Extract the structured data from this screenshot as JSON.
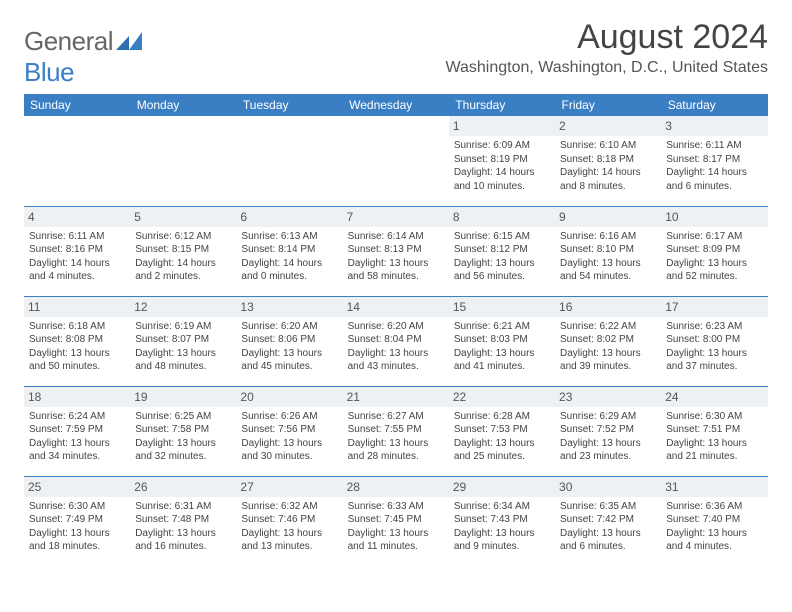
{
  "logo": {
    "general": "General",
    "blue": "Blue"
  },
  "header": {
    "title": "August 2024",
    "location": "Washington, Washington, D.C., United States"
  },
  "colors": {
    "header_bg": "#3a7fc4",
    "header_text": "#ffffff",
    "daynum_bg": "#eef1f3",
    "border": "#3a7fc4",
    "text": "#444444"
  },
  "weekdays": [
    "Sunday",
    "Monday",
    "Tuesday",
    "Wednesday",
    "Thursday",
    "Friday",
    "Saturday"
  ],
  "weeks": [
    [
      null,
      null,
      null,
      null,
      {
        "n": "1",
        "sr": "Sunrise: 6:09 AM",
        "ss": "Sunset: 8:19 PM",
        "dl1": "Daylight: 14 hours",
        "dl2": "and 10 minutes."
      },
      {
        "n": "2",
        "sr": "Sunrise: 6:10 AM",
        "ss": "Sunset: 8:18 PM",
        "dl1": "Daylight: 14 hours",
        "dl2": "and 8 minutes."
      },
      {
        "n": "3",
        "sr": "Sunrise: 6:11 AM",
        "ss": "Sunset: 8:17 PM",
        "dl1": "Daylight: 14 hours",
        "dl2": "and 6 minutes."
      }
    ],
    [
      {
        "n": "4",
        "sr": "Sunrise: 6:11 AM",
        "ss": "Sunset: 8:16 PM",
        "dl1": "Daylight: 14 hours",
        "dl2": "and 4 minutes."
      },
      {
        "n": "5",
        "sr": "Sunrise: 6:12 AM",
        "ss": "Sunset: 8:15 PM",
        "dl1": "Daylight: 14 hours",
        "dl2": "and 2 minutes."
      },
      {
        "n": "6",
        "sr": "Sunrise: 6:13 AM",
        "ss": "Sunset: 8:14 PM",
        "dl1": "Daylight: 14 hours",
        "dl2": "and 0 minutes."
      },
      {
        "n": "7",
        "sr": "Sunrise: 6:14 AM",
        "ss": "Sunset: 8:13 PM",
        "dl1": "Daylight: 13 hours",
        "dl2": "and 58 minutes."
      },
      {
        "n": "8",
        "sr": "Sunrise: 6:15 AM",
        "ss": "Sunset: 8:12 PM",
        "dl1": "Daylight: 13 hours",
        "dl2": "and 56 minutes."
      },
      {
        "n": "9",
        "sr": "Sunrise: 6:16 AM",
        "ss": "Sunset: 8:10 PM",
        "dl1": "Daylight: 13 hours",
        "dl2": "and 54 minutes."
      },
      {
        "n": "10",
        "sr": "Sunrise: 6:17 AM",
        "ss": "Sunset: 8:09 PM",
        "dl1": "Daylight: 13 hours",
        "dl2": "and 52 minutes."
      }
    ],
    [
      {
        "n": "11",
        "sr": "Sunrise: 6:18 AM",
        "ss": "Sunset: 8:08 PM",
        "dl1": "Daylight: 13 hours",
        "dl2": "and 50 minutes."
      },
      {
        "n": "12",
        "sr": "Sunrise: 6:19 AM",
        "ss": "Sunset: 8:07 PM",
        "dl1": "Daylight: 13 hours",
        "dl2": "and 48 minutes."
      },
      {
        "n": "13",
        "sr": "Sunrise: 6:20 AM",
        "ss": "Sunset: 8:06 PM",
        "dl1": "Daylight: 13 hours",
        "dl2": "and 45 minutes."
      },
      {
        "n": "14",
        "sr": "Sunrise: 6:20 AM",
        "ss": "Sunset: 8:04 PM",
        "dl1": "Daylight: 13 hours",
        "dl2": "and 43 minutes."
      },
      {
        "n": "15",
        "sr": "Sunrise: 6:21 AM",
        "ss": "Sunset: 8:03 PM",
        "dl1": "Daylight: 13 hours",
        "dl2": "and 41 minutes."
      },
      {
        "n": "16",
        "sr": "Sunrise: 6:22 AM",
        "ss": "Sunset: 8:02 PM",
        "dl1": "Daylight: 13 hours",
        "dl2": "and 39 minutes."
      },
      {
        "n": "17",
        "sr": "Sunrise: 6:23 AM",
        "ss": "Sunset: 8:00 PM",
        "dl1": "Daylight: 13 hours",
        "dl2": "and 37 minutes."
      }
    ],
    [
      {
        "n": "18",
        "sr": "Sunrise: 6:24 AM",
        "ss": "Sunset: 7:59 PM",
        "dl1": "Daylight: 13 hours",
        "dl2": "and 34 minutes."
      },
      {
        "n": "19",
        "sr": "Sunrise: 6:25 AM",
        "ss": "Sunset: 7:58 PM",
        "dl1": "Daylight: 13 hours",
        "dl2": "and 32 minutes."
      },
      {
        "n": "20",
        "sr": "Sunrise: 6:26 AM",
        "ss": "Sunset: 7:56 PM",
        "dl1": "Daylight: 13 hours",
        "dl2": "and 30 minutes."
      },
      {
        "n": "21",
        "sr": "Sunrise: 6:27 AM",
        "ss": "Sunset: 7:55 PM",
        "dl1": "Daylight: 13 hours",
        "dl2": "and 28 minutes."
      },
      {
        "n": "22",
        "sr": "Sunrise: 6:28 AM",
        "ss": "Sunset: 7:53 PM",
        "dl1": "Daylight: 13 hours",
        "dl2": "and 25 minutes."
      },
      {
        "n": "23",
        "sr": "Sunrise: 6:29 AM",
        "ss": "Sunset: 7:52 PM",
        "dl1": "Daylight: 13 hours",
        "dl2": "and 23 minutes."
      },
      {
        "n": "24",
        "sr": "Sunrise: 6:30 AM",
        "ss": "Sunset: 7:51 PM",
        "dl1": "Daylight: 13 hours",
        "dl2": "and 21 minutes."
      }
    ],
    [
      {
        "n": "25",
        "sr": "Sunrise: 6:30 AM",
        "ss": "Sunset: 7:49 PM",
        "dl1": "Daylight: 13 hours",
        "dl2": "and 18 minutes."
      },
      {
        "n": "26",
        "sr": "Sunrise: 6:31 AM",
        "ss": "Sunset: 7:48 PM",
        "dl1": "Daylight: 13 hours",
        "dl2": "and 16 minutes."
      },
      {
        "n": "27",
        "sr": "Sunrise: 6:32 AM",
        "ss": "Sunset: 7:46 PM",
        "dl1": "Daylight: 13 hours",
        "dl2": "and 13 minutes."
      },
      {
        "n": "28",
        "sr": "Sunrise: 6:33 AM",
        "ss": "Sunset: 7:45 PM",
        "dl1": "Daylight: 13 hours",
        "dl2": "and 11 minutes."
      },
      {
        "n": "29",
        "sr": "Sunrise: 6:34 AM",
        "ss": "Sunset: 7:43 PM",
        "dl1": "Daylight: 13 hours",
        "dl2": "and 9 minutes."
      },
      {
        "n": "30",
        "sr": "Sunrise: 6:35 AM",
        "ss": "Sunset: 7:42 PM",
        "dl1": "Daylight: 13 hours",
        "dl2": "and 6 minutes."
      },
      {
        "n": "31",
        "sr": "Sunrise: 6:36 AM",
        "ss": "Sunset: 7:40 PM",
        "dl1": "Daylight: 13 hours",
        "dl2": "and 4 minutes."
      }
    ]
  ]
}
